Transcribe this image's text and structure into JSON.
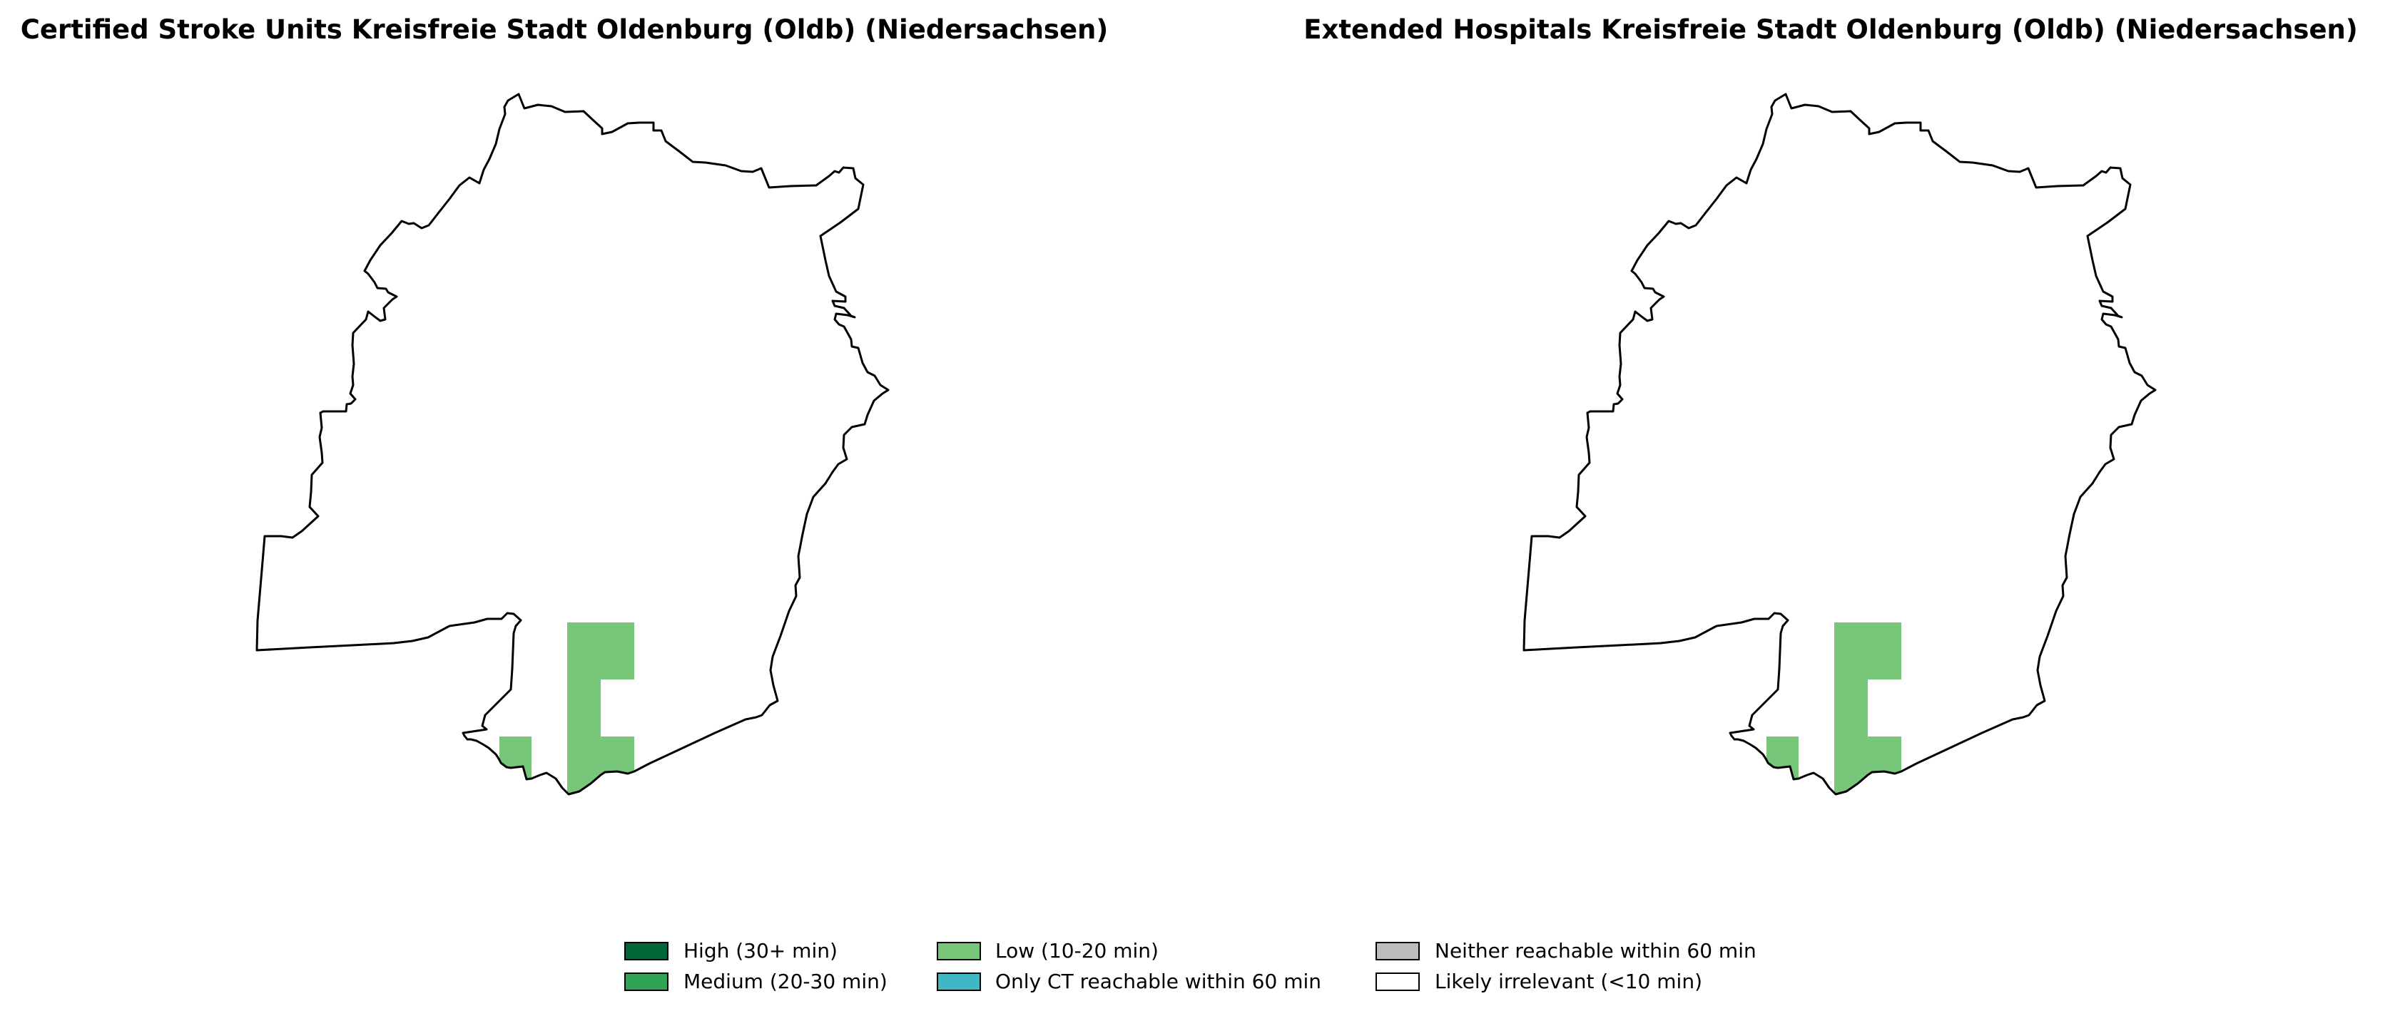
{
  "maps": [
    {
      "title": "Certified Stroke Units Kreisfreie Stadt Oldenburg (Oldb) (Niedersachsen)",
      "region_categories": [
        "Likely irrelevant (<10 min)",
        "Low (10-20 min)"
      ]
    },
    {
      "title": "Extended Hospitals Kreisfreie Stadt Oldenburg (Oldb) (Niedersachsen)",
      "region_categories": [
        "Likely irrelevant (<10 min)",
        "Low (10-20 min)"
      ]
    }
  ],
  "legend": {
    "items": [
      {
        "label": "High (30+ min)",
        "color": "#006837"
      },
      {
        "label": "Medium (20-30 min)",
        "color": "#31a354"
      },
      {
        "label": "Low (10-20 min)",
        "color": "#78c679"
      },
      {
        "label": "Only CT reachable within 60 min",
        "color": "#41b6c4"
      },
      {
        "label": "Neither reachable within 60 min",
        "color": "#bdbdbd"
      },
      {
        "label": "Likely irrelevant (<10 min)",
        "color": "#ffffff"
      }
    ]
  },
  "colors": {
    "outline": "#000000",
    "background": "#ffffff"
  }
}
